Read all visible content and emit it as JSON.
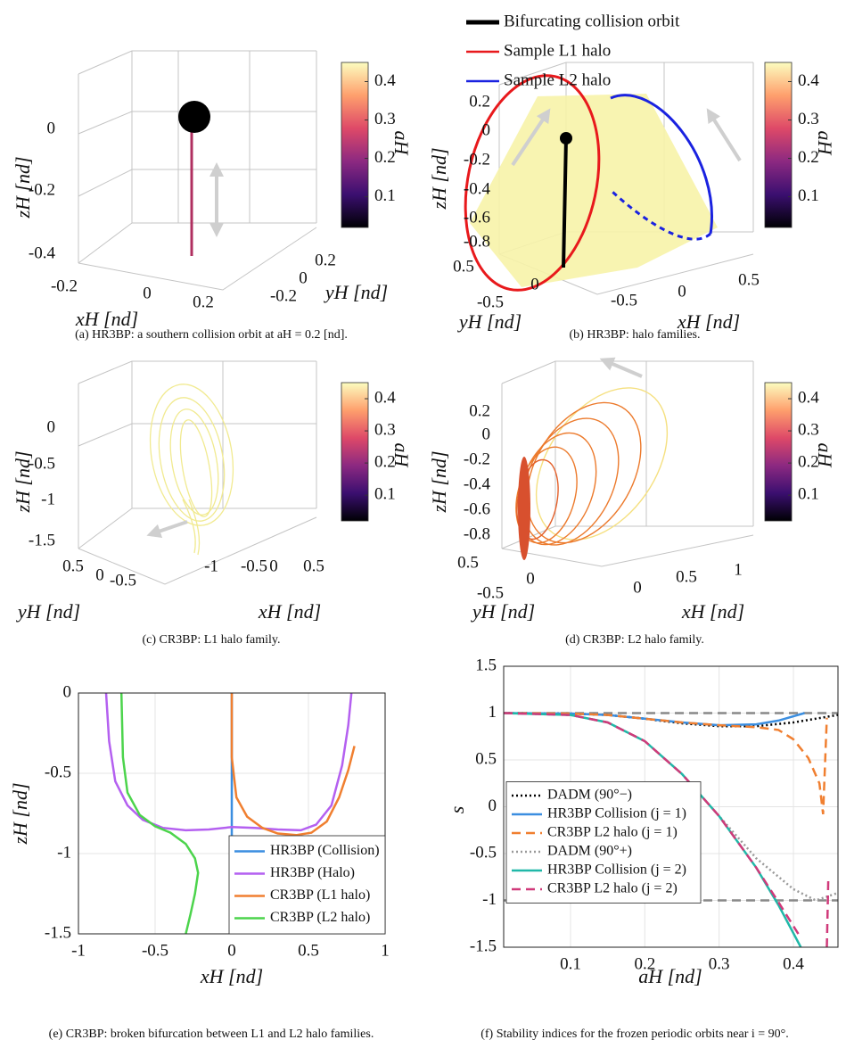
{
  "chart_data": [
    {
      "type": "plot3d",
      "caption": "(a) HR3BP: a southern collision orbit at aH = 0.2 [nd].",
      "xlabel": "xH [nd]",
      "ylabel": "yH [nd]",
      "zlabel": "zH [nd]",
      "colorbar_label": "aH",
      "xticks": [
        -0.2,
        0,
        0.2
      ],
      "yticks": [
        -0.2,
        0,
        0.2
      ],
      "zticks": [
        -0.4,
        -0.2,
        0
      ],
      "clim": [
        0.02,
        0.45
      ],
      "cticks": [
        0.1,
        0.2,
        0.3,
        0.4
      ]
    },
    {
      "type": "plot3d",
      "caption": "(b) HR3BP: halo families.",
      "xlabel": "xH [nd]",
      "ylabel": "yH [nd]",
      "zlabel": "zH [nd]",
      "colorbar_label": "aH",
      "xticks": [
        -0.5,
        0,
        0.5
      ],
      "yticks": [
        -0.5,
        0,
        0.5
      ],
      "zticks": [
        -0.8,
        -0.6,
        -0.4,
        -0.2,
        0,
        0.2
      ],
      "clim": [
        0.02,
        0.45
      ],
      "cticks": [
        0.1,
        0.2,
        0.3,
        0.4
      ],
      "series": [
        {
          "name": "Bifurcating collision orbit",
          "color": "#000000"
        },
        {
          "name": "Sample L1 halo",
          "color": "#e8191c"
        },
        {
          "name": "Sample L2 halo",
          "color": "#1a22e0"
        }
      ]
    },
    {
      "type": "plot3d",
      "caption": "(c) CR3BP: L1 halo family.",
      "xlabel": "xH [nd]",
      "ylabel": "yH [nd]",
      "zlabel": "zH [nd]",
      "colorbar_label": "aH",
      "xticks": [
        -1,
        -0.5,
        0,
        0.5
      ],
      "yticks": [
        -0.5,
        0,
        0.5
      ],
      "zticks": [
        -1.5,
        -1,
        -0.5,
        0
      ],
      "clim": [
        0.02,
        0.45
      ],
      "cticks": [
        0.1,
        0.2,
        0.3,
        0.4
      ]
    },
    {
      "type": "plot3d",
      "caption": "(d) CR3BP: L2 halo family.",
      "xlabel": "xH [nd]",
      "ylabel": "yH [nd]",
      "zlabel": "zH [nd]",
      "colorbar_label": "aH",
      "xticks": [
        0,
        0.5,
        1
      ],
      "yticks": [
        -0.5,
        0,
        0.5
      ],
      "zticks": [
        -0.8,
        -0.6,
        -0.4,
        -0.2,
        0,
        0.2
      ],
      "clim": [
        0.02,
        0.45
      ],
      "cticks": [
        0.1,
        0.2,
        0.3,
        0.4
      ]
    },
    {
      "type": "line",
      "caption": "(e) CR3BP: broken bifurcation between L1 and L2 halo families.",
      "xlabel": "xH [nd]",
      "ylabel": "zH [nd]",
      "xlim": [
        -1,
        1
      ],
      "ylim": [
        -1.5,
        0
      ],
      "xticks": [
        -1,
        -0.5,
        0,
        0.5,
        1
      ],
      "yticks": [
        -1.5,
        -1,
        -0.5,
        0
      ],
      "grid": true,
      "legend": "lower right",
      "series": [
        {
          "name": "HR3BP (Collision)",
          "color": "#3b8ee0",
          "style": "solid",
          "x": [
            0,
            0
          ],
          "values": [
            0,
            -1.5
          ]
        },
        {
          "name": "HR3BP (Halo)",
          "color": "#b460f0",
          "style": "solid",
          "x": [
            -0.82,
            -0.8,
            -0.76,
            -0.68,
            -0.58,
            -0.45,
            -0.3,
            -0.15,
            0,
            0.15,
            0.3,
            0.45,
            0.55,
            0.65,
            0.72,
            0.76,
            0.78
          ],
          "values": [
            0,
            -0.3,
            -0.55,
            -0.7,
            -0.79,
            -0.84,
            -0.855,
            -0.85,
            -0.835,
            -0.84,
            -0.85,
            -0.855,
            -0.82,
            -0.7,
            -0.45,
            -0.2,
            0
          ]
        },
        {
          "name": "CR3BP (L1 halo)",
          "color": "#f07f30",
          "style": "solid",
          "x": [
            0,
            0,
            0.03,
            0.1,
            0.2,
            0.3,
            0.42,
            0.52,
            0.62,
            0.7,
            0.76,
            0.8
          ],
          "values": [
            0,
            -0.4,
            -0.65,
            -0.77,
            -0.84,
            -0.875,
            -0.885,
            -0.87,
            -0.8,
            -0.65,
            -0.48,
            -0.33
          ]
        },
        {
          "name": "CR3BP (L2 halo)",
          "color": "#4cd44c",
          "style": "solid",
          "x": [
            -0.72,
            -0.71,
            -0.68,
            -0.6,
            -0.5,
            -0.4,
            -0.3,
            -0.24,
            -0.22,
            -0.24,
            -0.27,
            -0.3
          ],
          "values": [
            0,
            -0.4,
            -0.62,
            -0.76,
            -0.83,
            -0.87,
            -0.94,
            -1.03,
            -1.12,
            -1.25,
            -1.38,
            -1.5
          ]
        }
      ]
    },
    {
      "type": "line",
      "caption": "(f) Stability indices for the frozen periodic orbits near i = 90°.",
      "xlabel": "aH [nd]",
      "ylabel": "s",
      "xlim": [
        0.01,
        0.46
      ],
      "ylim": [
        -1.5,
        1.5
      ],
      "xticks": [
        0.1,
        0.2,
        0.3,
        0.4
      ],
      "yticks": [
        -1.5,
        -1,
        -0.5,
        0,
        0.5,
        1,
        1.5
      ],
      "grid": true,
      "legend": "center left",
      "reference_lines": {
        "values": [
          1,
          -1
        ],
        "color": "#888888"
      },
      "series": [
        {
          "name": "DADM (90°−)",
          "color": "#000000",
          "style": "dotted",
          "x": [
            0.01,
            0.1,
            0.15,
            0.2,
            0.25,
            0.3,
            0.35,
            0.4,
            0.46
          ],
          "values": [
            1,
            0.995,
            0.98,
            0.94,
            0.89,
            0.86,
            0.86,
            0.9,
            0.98
          ]
        },
        {
          "name": "HR3BP Collision (j = 1)",
          "color": "#3b8ee0",
          "style": "solid",
          "x": [
            0.01,
            0.1,
            0.15,
            0.2,
            0.25,
            0.3,
            0.35,
            0.38,
            0.415
          ],
          "values": [
            1,
            0.995,
            0.98,
            0.94,
            0.9,
            0.87,
            0.88,
            0.92,
            1
          ]
        },
        {
          "name": "CR3BP L2 halo (j = 1)",
          "color": "#f07f30",
          "style": "dashed",
          "x": [
            0.01,
            0.1,
            0.15,
            0.2,
            0.25,
            0.3,
            0.35,
            0.38,
            0.4,
            0.42,
            0.435,
            0.44,
            0.445
          ],
          "values": [
            1,
            0.995,
            0.98,
            0.94,
            0.9,
            0.87,
            0.85,
            0.82,
            0.72,
            0.52,
            0.25,
            -0.08,
            0.95
          ]
        },
        {
          "name": "DADM (90°+)",
          "color": "#999999",
          "style": "dotted",
          "x": [
            0.01,
            0.1,
            0.15,
            0.2,
            0.25,
            0.3,
            0.35,
            0.4,
            0.43,
            0.46
          ],
          "values": [
            1,
            0.98,
            0.9,
            0.7,
            0.35,
            -0.1,
            -0.55,
            -0.88,
            -1,
            -0.92
          ]
        },
        {
          "name": "HR3BP Collision (j = 2)",
          "color": "#20b8a8",
          "style": "solid",
          "x": [
            0.01,
            0.1,
            0.15,
            0.2,
            0.25,
            0.3,
            0.35,
            0.38,
            0.41
          ],
          "values": [
            1,
            0.98,
            0.9,
            0.7,
            0.35,
            -0.1,
            -0.65,
            -1.05,
            -1.5
          ]
        },
        {
          "name": "CR3BP L2 halo (j = 2)",
          "color": "#d03a7a",
          "style": "dashed",
          "x": [
            0.01,
            0.1,
            0.15,
            0.2,
            0.25,
            0.3,
            0.35,
            0.38,
            0.41,
            0.43,
            0.445,
            0.447
          ],
          "values": [
            1,
            0.98,
            0.9,
            0.7,
            0.35,
            -0.1,
            -0.65,
            -1.02,
            -1.4,
            null,
            -1.5,
            -0.75
          ]
        }
      ]
    }
  ]
}
